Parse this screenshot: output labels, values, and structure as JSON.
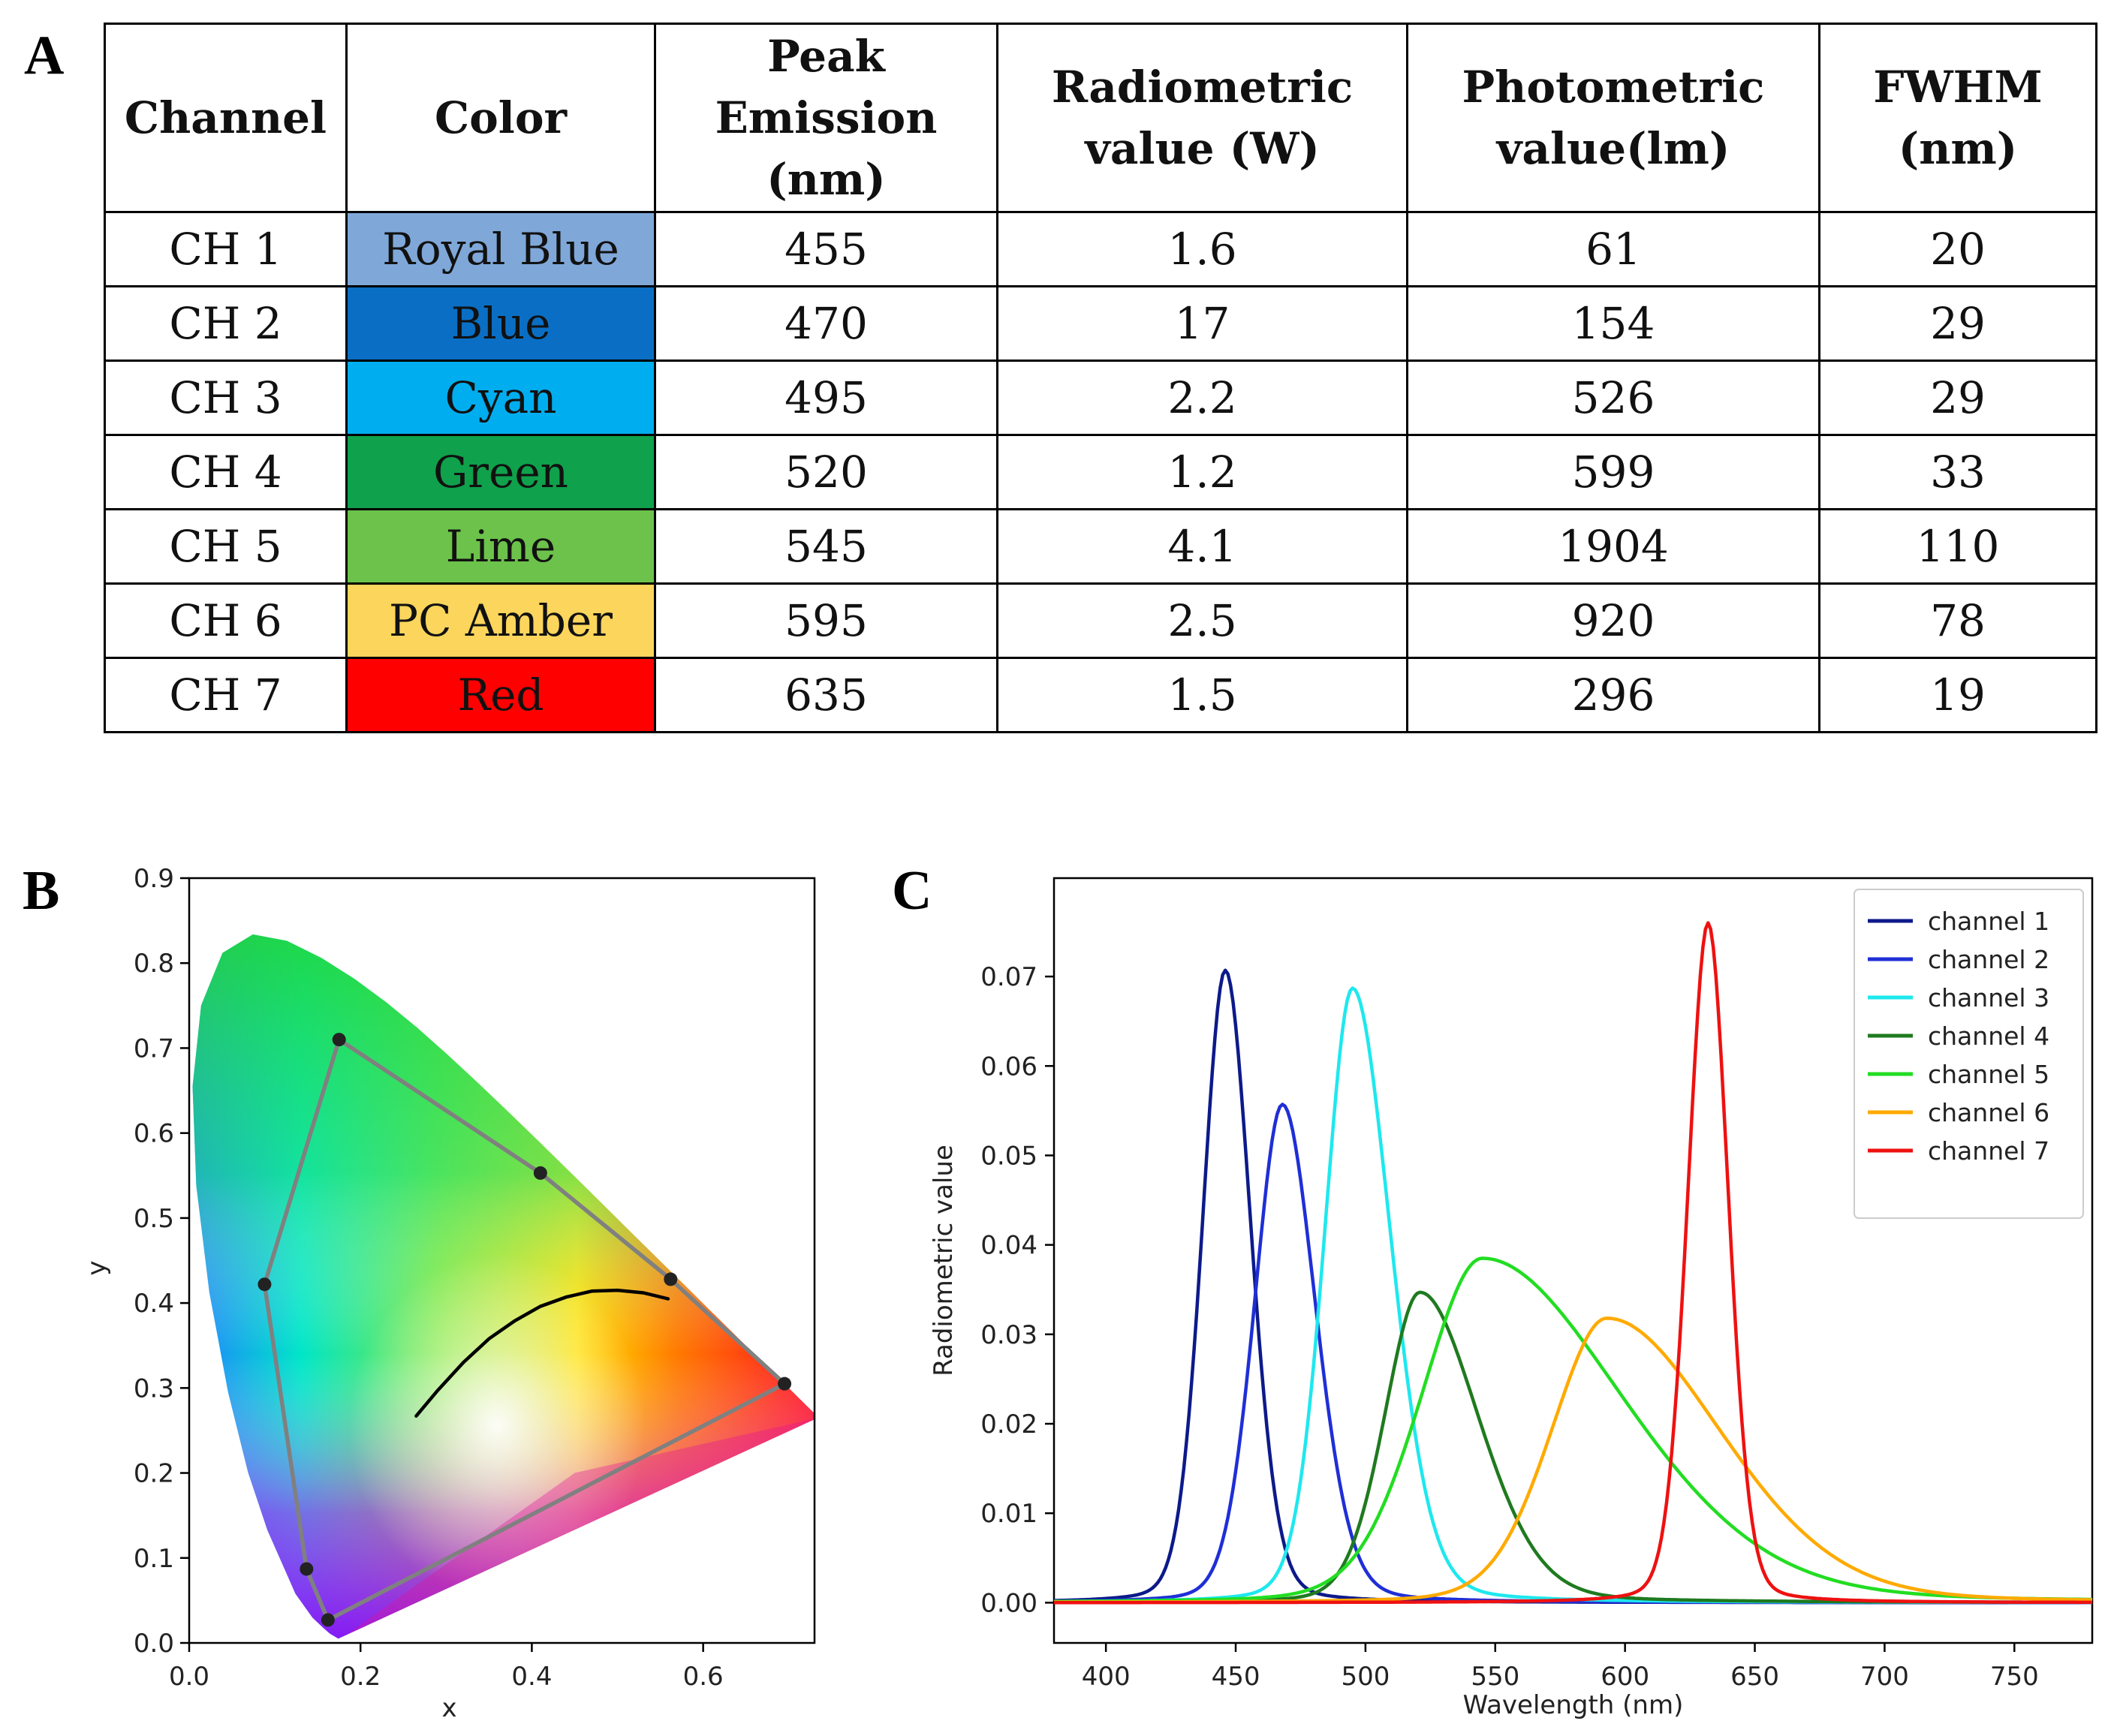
{
  "panels": {
    "a": "A",
    "b": "B",
    "c": "C"
  },
  "table": {
    "headers": [
      [
        "Channel"
      ],
      [
        "Color"
      ],
      [
        "Peak",
        "Emission",
        "(nm)"
      ],
      [
        "Radiometric",
        "value (W)"
      ],
      [
        "Photometric",
        "value(lm)"
      ],
      [
        "FWHM",
        "(nm)"
      ]
    ],
    "rows": [
      {
        "channel": "CH 1",
        "color": "Royal Blue",
        "swatch": "#7fa8d9",
        "peak": "455",
        "radiometric": "1.6",
        "photometric": "61",
        "fwhm": "20"
      },
      {
        "channel": "CH 2",
        "color": "Blue",
        "swatch": "#0a6fc4",
        "peak": "470",
        "radiometric": "17",
        "photometric": "154",
        "fwhm": "29"
      },
      {
        "channel": "CH 3",
        "color": "Cyan",
        "swatch": "#00aeef",
        "peak": "495",
        "radiometric": "2.2",
        "photometric": "526",
        "fwhm": "29"
      },
      {
        "channel": "CH 4",
        "color": "Green",
        "swatch": "#0fa14b",
        "peak": "520",
        "radiometric": "1.2",
        "photometric": "599",
        "fwhm": "33"
      },
      {
        "channel": "CH 5",
        "color": "Lime",
        "swatch": "#6cc24a",
        "peak": "545",
        "radiometric": "4.1",
        "photometric": "1904",
        "fwhm": "110"
      },
      {
        "channel": "CH 6",
        "color": "PC Amber",
        "swatch": "#fcd55c",
        "peak": "595",
        "radiometric": "2.5",
        "photometric": "920",
        "fwhm": "78"
      },
      {
        "channel": "CH 7",
        "color": "Red",
        "swatch": "#ff0000",
        "peak": "635",
        "radiometric": "1.5",
        "photometric": "296",
        "fwhm": "19"
      }
    ]
  },
  "chart_data": [
    {
      "type": "scatter",
      "title": "",
      "xlabel": "x",
      "ylabel": "y",
      "xlim": [
        0.0,
        0.73
      ],
      "ylim": [
        0.0,
        0.9
      ],
      "xticks": [
        "0.0",
        "0.2",
        "0.4",
        "0.6"
      ],
      "yticks": [
        "0.0",
        "0.1",
        "0.2",
        "0.3",
        "0.4",
        "0.5",
        "0.6",
        "0.7",
        "0.8",
        "0.9"
      ],
      "background": "CIE 1931 chromaticity diagram",
      "gamut_points": [
        {
          "x": 0.175,
          "y": 0.71
        },
        {
          "x": 0.41,
          "y": 0.553
        },
        {
          "x": 0.562,
          "y": 0.428
        },
        {
          "x": 0.695,
          "y": 0.305
        },
        {
          "x": 0.162,
          "y": 0.027
        },
        {
          "x": 0.137,
          "y": 0.087
        },
        {
          "x": 0.088,
          "y": 0.422
        }
      ],
      "gamut_line_color": "#808080",
      "planckian_locus": [
        {
          "x": 0.265,
          "y": 0.267
        },
        {
          "x": 0.29,
          "y": 0.297
        },
        {
          "x": 0.32,
          "y": 0.33
        },
        {
          "x": 0.35,
          "y": 0.358
        },
        {
          "x": 0.38,
          "y": 0.379
        },
        {
          "x": 0.41,
          "y": 0.396
        },
        {
          "x": 0.44,
          "y": 0.407
        },
        {
          "x": 0.47,
          "y": 0.414
        },
        {
          "x": 0.5,
          "y": 0.415
        },
        {
          "x": 0.53,
          "y": 0.412
        },
        {
          "x": 0.559,
          "y": 0.405
        }
      ]
    },
    {
      "type": "line",
      "title": "",
      "xlabel": "Wavelength (nm)",
      "ylabel": "Radiometric value",
      "xlim": [
        380,
        780
      ],
      "ylim": [
        -0.0045,
        0.081
      ],
      "xticks": [
        400,
        450,
        500,
        550,
        600,
        650,
        700,
        750
      ],
      "yticks": [
        "0.00",
        "0.01",
        "0.02",
        "0.03",
        "0.04",
        "0.05",
        "0.06",
        "0.07"
      ],
      "legend_position": "top-right",
      "series": [
        {
          "name": "channel 1",
          "color": "#0d1a8a",
          "peak_nm": 446,
          "peak_value": 0.0707,
          "left_width": 9,
          "right_width": 10
        },
        {
          "name": "channel 2",
          "color": "#1f2fd6",
          "peak_nm": 468,
          "peak_value": 0.0557,
          "left_width": 11,
          "right_width": 13
        },
        {
          "name": "channel 3",
          "color": "#1ee8ee",
          "peak_nm": 495,
          "peak_value": 0.0687,
          "left_width": 11,
          "right_width": 15
        },
        {
          "name": "channel 4",
          "color": "#1f7a1f",
          "peak_nm": 521,
          "peak_value": 0.0347,
          "left_width": 14,
          "right_width": 23
        },
        {
          "name": "channel 5",
          "color": "#22dd22",
          "peak_nm": 545,
          "peak_value": 0.0385,
          "left_width": 24,
          "right_width": 55
        },
        {
          "name": "channel 6",
          "color": "#ffaa00",
          "peak_nm": 593,
          "peak_value": 0.0318,
          "left_width": 22,
          "right_width": 45
        },
        {
          "name": "channel 7",
          "color": "#ee1111",
          "peak_nm": 632,
          "peak_value": 0.076,
          "left_width": 8,
          "right_width": 8
        }
      ]
    }
  ]
}
